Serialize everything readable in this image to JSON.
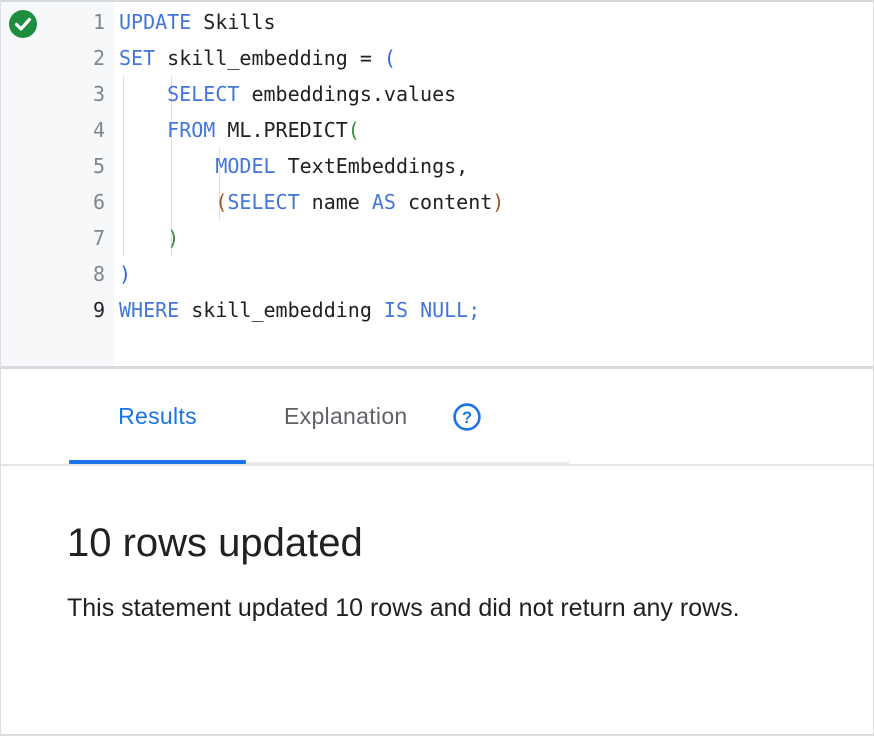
{
  "colors": {
    "kw": "#4276db",
    "plain": "#202124",
    "paren1": "#2a63e8",
    "paren2": "#388e3c",
    "paren3": "#a0522d",
    "tabActive": "#1a73e8",
    "successGreen": "#1e8e3e",
    "lineNum": "#80868b",
    "gutterBg": "#f7f8f9"
  },
  "editor": {
    "status_icon": "success-checkmark",
    "lines": [
      {
        "num": "1",
        "active": false,
        "guides": 0,
        "tokens": [
          {
            "c": "kw",
            "t": "UPDATE"
          },
          {
            "c": "pl",
            "t": " Skills"
          }
        ]
      },
      {
        "num": "2",
        "active": false,
        "guides": 0,
        "tokens": [
          {
            "c": "kw",
            "t": "SET"
          },
          {
            "c": "pl",
            "t": " skill_embedding = "
          },
          {
            "c": "p1",
            "t": "("
          }
        ]
      },
      {
        "num": "3",
        "active": false,
        "guides": 2,
        "tokens": [
          {
            "c": "pl",
            "t": "    "
          },
          {
            "c": "kw",
            "t": "SELECT"
          },
          {
            "c": "pl",
            "t": " embeddings.values"
          }
        ]
      },
      {
        "num": "4",
        "active": false,
        "guides": 2,
        "tokens": [
          {
            "c": "pl",
            "t": "    "
          },
          {
            "c": "kw",
            "t": "FROM"
          },
          {
            "c": "pl",
            "t": " ML.PREDICT"
          },
          {
            "c": "p2",
            "t": "("
          }
        ]
      },
      {
        "num": "5",
        "active": false,
        "guides": 3,
        "tokens": [
          {
            "c": "pl",
            "t": "        "
          },
          {
            "c": "kw",
            "t": "MODEL"
          },
          {
            "c": "pl",
            "t": " TextEmbeddings,"
          }
        ]
      },
      {
        "num": "6",
        "active": false,
        "guides": 3,
        "tokens": [
          {
            "c": "pl",
            "t": "        "
          },
          {
            "c": "p3",
            "t": "("
          },
          {
            "c": "kw",
            "t": "SELECT"
          },
          {
            "c": "pl",
            "t": " name "
          },
          {
            "c": "kw",
            "t": "AS"
          },
          {
            "c": "pl",
            "t": " content"
          },
          {
            "c": "p3",
            "t": ")"
          }
        ]
      },
      {
        "num": "7",
        "active": false,
        "guides": 2,
        "tokens": [
          {
            "c": "pl",
            "t": "    "
          },
          {
            "c": "p2",
            "t": ")"
          }
        ]
      },
      {
        "num": "8",
        "active": false,
        "guides": 0,
        "tokens": [
          {
            "c": "p1",
            "t": ")"
          }
        ]
      },
      {
        "num": "9",
        "active": true,
        "guides": 0,
        "tokens": [
          {
            "c": "kw",
            "t": "WHERE"
          },
          {
            "c": "pl",
            "t": " skill_embedding "
          },
          {
            "c": "kw",
            "t": "IS"
          },
          {
            "c": "pl",
            "t": " "
          },
          {
            "c": "kw",
            "t": "NULL"
          },
          {
            "c": "kw",
            "t": ";"
          }
        ]
      }
    ]
  },
  "tabs": {
    "results_label": "Results",
    "explanation_label": "Explanation",
    "help_icon": "help-circle-question"
  },
  "results": {
    "heading": "10 rows updated",
    "body": "This statement updated 10 rows and did not return any rows."
  }
}
